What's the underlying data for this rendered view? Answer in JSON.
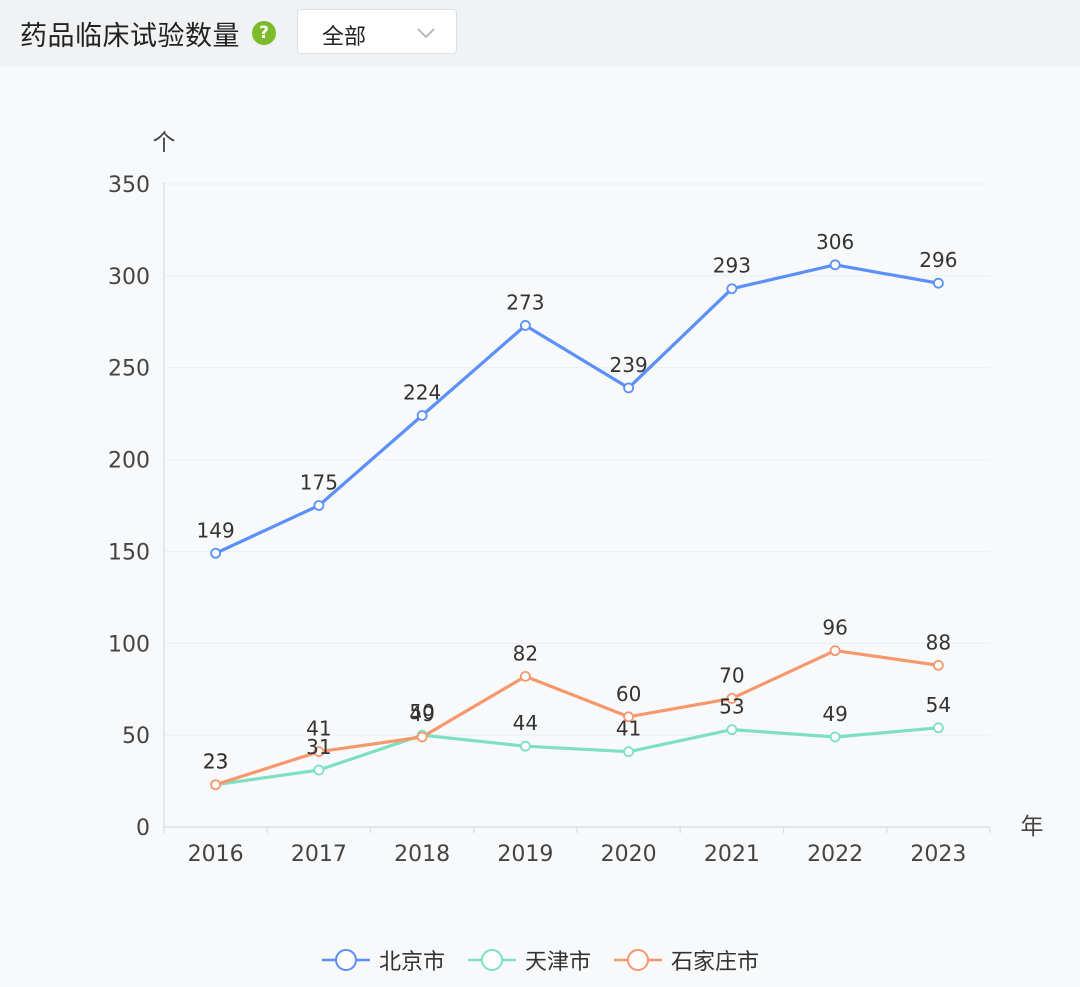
{
  "header": {
    "title": "药品临床试验数量",
    "help_icon": "question-circle-icon",
    "dropdown": {
      "selected": "全部",
      "icon": "chevron-down-icon"
    }
  },
  "colors": {
    "beijing": "#5b8ff9",
    "tianjin": "#7ee0c2",
    "shijiazhuang": "#f6986e"
  },
  "chart_data": {
    "type": "line",
    "x": [
      "2016",
      "2017",
      "2018",
      "2019",
      "2020",
      "2021",
      "2022",
      "2023"
    ],
    "xlabel": "年",
    "ylabel": "个",
    "ylim": [
      0,
      350
    ],
    "yticks": [
      0,
      50,
      100,
      150,
      200,
      250,
      300,
      350
    ],
    "grid": true,
    "legend": "bottom-center",
    "series": [
      {
        "name": "北京市",
        "color": "#5b8ff9",
        "values": [
          149,
          175,
          224,
          273,
          239,
          293,
          306,
          296
        ]
      },
      {
        "name": "天津市",
        "color": "#7ee0c2",
        "values": [
          23,
          31,
          50,
          44,
          41,
          53,
          49,
          54
        ]
      },
      {
        "name": "石家庄市",
        "color": "#f6986e",
        "values": [
          23,
          41,
          49,
          82,
          60,
          70,
          96,
          88
        ]
      }
    ]
  }
}
